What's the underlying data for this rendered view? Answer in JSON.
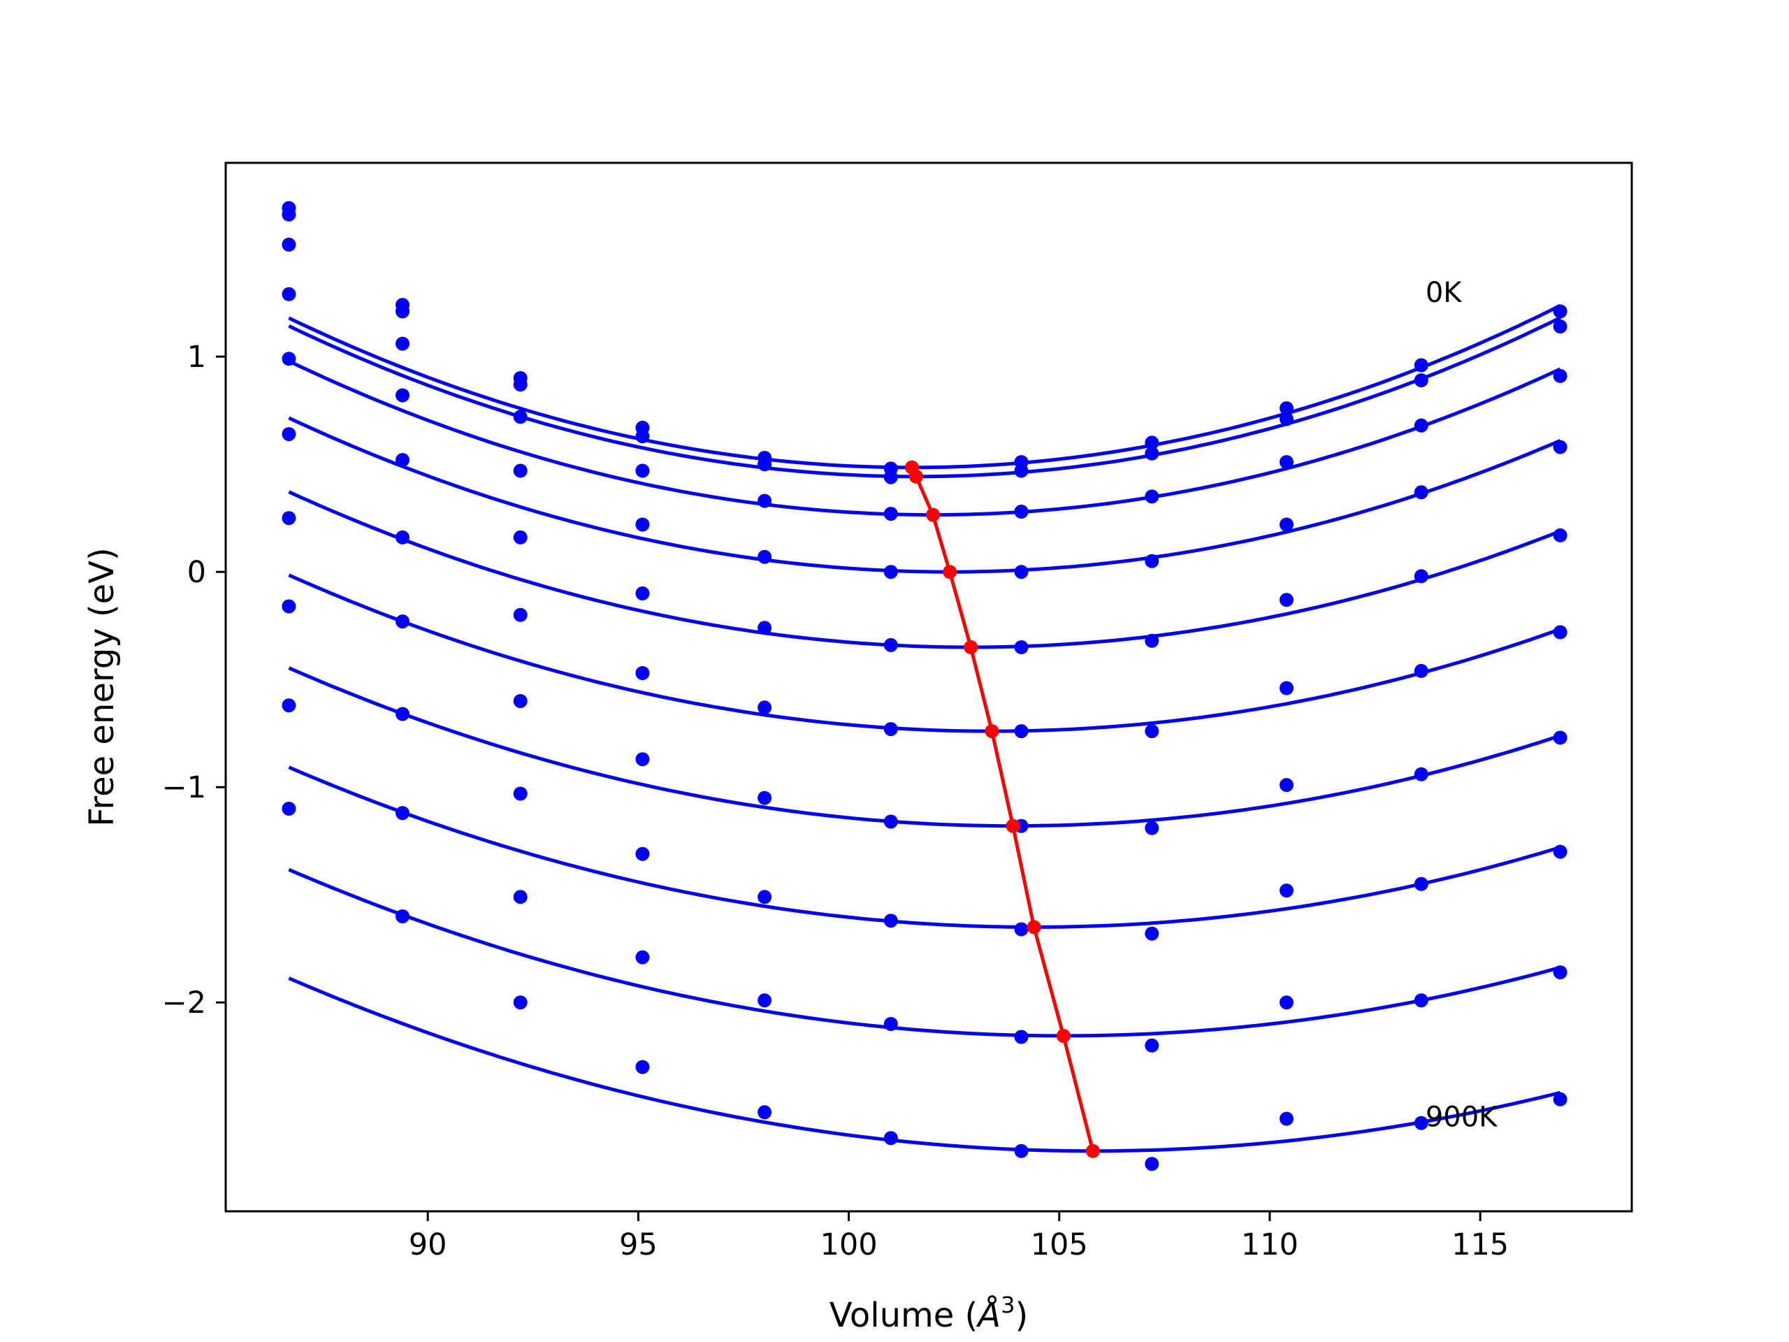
{
  "chart_data": {
    "type": "line",
    "xlabel_main": "Volume (",
    "xlabel_unit": "Å",
    "xlabel_exp": "3",
    "xlabel_close": ")",
    "ylabel": "Free energy (eV)",
    "xlim": [
      85.2,
      118.6
    ],
    "ylim": [
      -2.97,
      1.9
    ],
    "xticks": [
      90,
      95,
      100,
      105,
      110,
      115
    ],
    "xtick_labels": [
      "90",
      "95",
      "100",
      "105",
      "110",
      "115"
    ],
    "yticks": [
      1,
      0,
      -1,
      -2
    ],
    "ytick_labels": [
      "1",
      "0",
      "−1",
      "−2"
    ],
    "grid": false,
    "volumes": [
      86.7,
      89.4,
      92.2,
      95.1,
      98.0,
      101.0,
      104.1,
      107.2,
      110.4,
      113.6,
      116.9
    ],
    "annotations": [
      {
        "text": "0K",
        "x": 113.7,
        "y": 1.3
      },
      {
        "text": "900K",
        "x": 113.7,
        "y": -2.53
      }
    ],
    "series": [
      {
        "color": "#0000ff",
        "points": [
          1.69,
          1.24,
          0.9,
          0.67,
          0.53,
          0.48,
          0.51,
          0.6,
          0.76,
          0.96,
          1.21
        ],
        "curve_v0": 101.5,
        "curve_e0": 0.485,
        "curve_a": 0.00317
      },
      {
        "color": "#0000ff",
        "points": [
          1.66,
          1.21,
          0.87,
          0.63,
          0.5,
          0.44,
          0.47,
          0.55,
          0.71,
          0.89,
          1.14
        ],
        "curve_v0": 101.6,
        "curve_e0": 0.443,
        "curve_a": 0.00315
      },
      {
        "color": "#0000ff",
        "points": [
          1.52,
          1.06,
          0.72,
          0.47,
          0.33,
          0.27,
          0.28,
          0.35,
          0.51,
          0.68,
          0.91
        ],
        "curve_v0": 102.0,
        "curve_e0": 0.265,
        "curve_a": 0.00305
      },
      {
        "color": "#0000ff",
        "points": [
          1.29,
          0.82,
          0.47,
          0.22,
          0.07,
          0.0,
          0.0,
          0.05,
          0.22,
          0.37,
          0.58
        ],
        "curve_v0": 102.4,
        "curve_e0": 0.0,
        "curve_a": 0.0029
      },
      {
        "color": "#0000ff",
        "points": [
          0.99,
          0.52,
          0.16,
          -0.1,
          -0.26,
          -0.34,
          -0.35,
          -0.32,
          -0.13,
          -0.02,
          0.17
        ],
        "curve_v0": 102.9,
        "curve_e0": -0.35,
        "curve_a": 0.00275
      },
      {
        "color": "#0000ff",
        "points": [
          0.64,
          0.16,
          -0.2,
          -0.47,
          -0.63,
          -0.73,
          -0.74,
          -0.74,
          -0.54,
          -0.46,
          -0.28
        ],
        "curve_v0": 103.4,
        "curve_e0": -0.74,
        "curve_a": 0.0026
      },
      {
        "color": "#0000ff",
        "points": [
          0.25,
          -0.23,
          -0.6,
          -0.87,
          -1.05,
          -1.16,
          -1.18,
          -1.19,
          -0.99,
          -0.94,
          -0.77
        ],
        "curve_v0": 103.9,
        "curve_e0": -1.18,
        "curve_a": 0.00248
      },
      {
        "color": "#0000ff",
        "points": [
          -0.16,
          -0.66,
          -1.03,
          -1.31,
          -1.51,
          -1.62,
          -1.66,
          -1.68,
          -1.48,
          -1.45,
          -1.3
        ],
        "curve_v0": 104.4,
        "curve_e0": -1.65,
        "curve_a": 0.00237
      },
      {
        "color": "#0000ff",
        "points": [
          -0.62,
          -1.12,
          -1.51,
          -1.79,
          -1.99,
          -2.1,
          -2.16,
          -2.2,
          -2.0,
          -1.99,
          -1.86
        ],
        "curve_v0": 105.1,
        "curve_e0": -2.155,
        "curve_a": 0.00228
      },
      {
        "color": "#0000ff",
        "points": [
          -1.1,
          -1.6,
          -2.0,
          -2.3,
          -2.51,
          -2.63,
          -2.69,
          -2.75,
          -2.54,
          -2.56,
          -2.45
        ],
        "curve_v0": 105.8,
        "curve_e0": -2.69,
        "curve_a": 0.0022
      }
    ],
    "minimum_line": {
      "color": "#ff0000",
      "x": [
        101.5,
        101.6,
        102.0,
        102.4,
        102.9,
        103.4,
        103.9,
        104.4,
        105.1,
        105.8
      ],
      "y": [
        0.485,
        0.443,
        0.265,
        0.0,
        -0.35,
        -0.74,
        -1.18,
        -1.65,
        -2.155,
        -2.69
      ]
    }
  }
}
